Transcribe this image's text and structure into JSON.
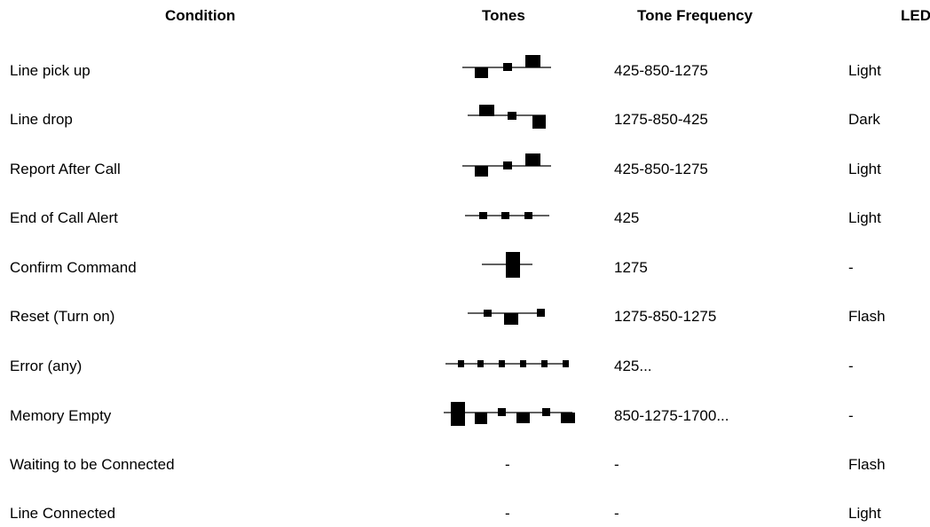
{
  "headers": {
    "condition": "Condition",
    "tones": "Tones",
    "tone_frequency": "Tone Frequency",
    "led": "LED"
  },
  "rows": [
    {
      "condition": "Line pick up",
      "tones": "low-mid-high rising",
      "frequency": "425-850-1275",
      "led": "Light"
    },
    {
      "condition": "Line drop",
      "tones": "high-mid-low falling",
      "frequency": "1275-850-425",
      "led": "Dark"
    },
    {
      "condition": "Report After Call",
      "tones": "low-mid-high rising",
      "frequency": "425-850-1275",
      "led": "Light"
    },
    {
      "condition": "End of Call Alert",
      "tones": "three short beeps",
      "frequency": "425",
      "led": "Light"
    },
    {
      "condition": "Confirm Command",
      "tones": "single long tone",
      "frequency": "1275",
      "led": "-"
    },
    {
      "condition": "Reset (Turn on)",
      "tones": "high-mid-high",
      "frequency": "1275-850-1275",
      "led": "Flash"
    },
    {
      "condition": "Error (any)",
      "tones": "repeating short beeps",
      "frequency": "425...",
      "led": "-"
    },
    {
      "condition": "Memory Empty",
      "tones": "repeating mid-high-higher pattern",
      "frequency": "850-1275-1700...",
      "led": "-"
    },
    {
      "condition": "Waiting to be Connected",
      "tones": "-",
      "frequency": "-",
      "led": "Flash"
    },
    {
      "condition": "Line Connected",
      "tones": "-",
      "frequency": "-",
      "led": "Light"
    }
  ],
  "colors": {
    "text": "#000000",
    "background": "#ffffff",
    "tone_mark": "#000000"
  }
}
